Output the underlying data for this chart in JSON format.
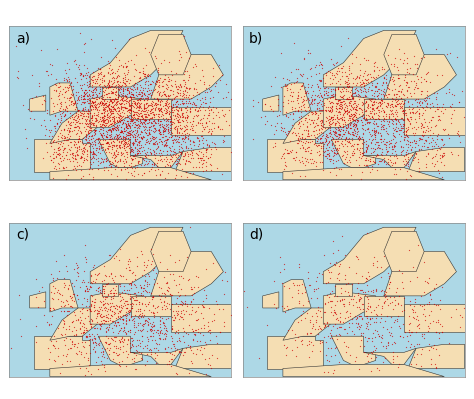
{
  "panels": [
    "a)",
    "b)",
    "c)",
    "d)"
  ],
  "panel_colors": {
    "ocean": "#add8e6",
    "land": "#f5deb3",
    "border": "#333333",
    "dots": "#cc0000",
    "outline": "#cc0000"
  },
  "dot_counts": [
    3000,
    2000,
    1200,
    600
  ],
  "seeds": [
    42,
    123,
    7,
    99
  ],
  "fig_bg": "#ffffff",
  "label_fontsize": 10,
  "lon_range": [
    -15,
    40
  ],
  "lat_range": [
    34,
    72
  ]
}
